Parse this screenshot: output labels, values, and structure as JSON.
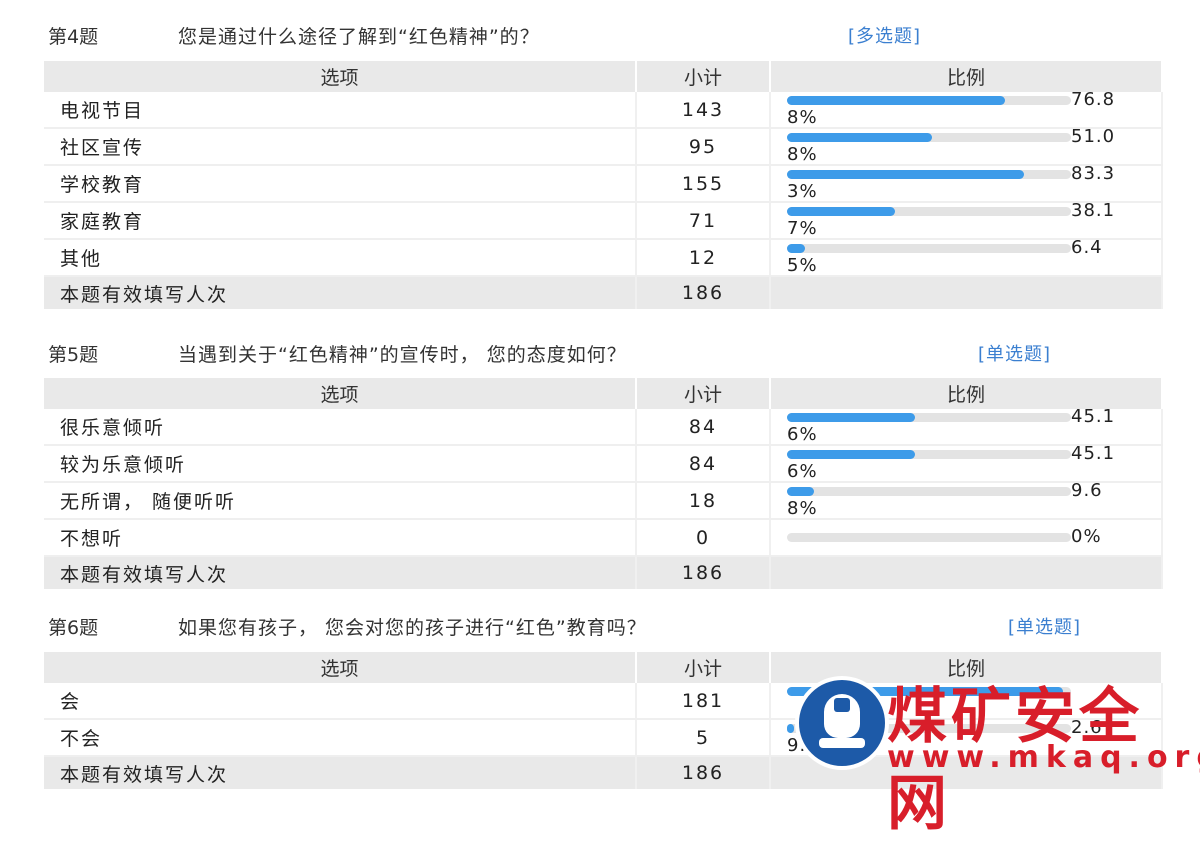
{
  "columns": {
    "option": "选项",
    "count": "小计",
    "ratio": "比例"
  },
  "total_label": "本题有效填写人次",
  "questions": [
    {
      "num": "第4题",
      "text": "您是通过什么途径了解到“红色精神”的？",
      "type": "[多选题]",
      "total": "186",
      "rows": [
        {
          "option": "电视节目",
          "count": "143",
          "pct_top": "76.8",
          "pct_bot": "8%",
          "fill": 0.768
        },
        {
          "option": "社区宣传",
          "count": "95",
          "pct_top": "51.0",
          "pct_bot": "8%",
          "fill": 0.51
        },
        {
          "option": "学校教育",
          "count": "155",
          "pct_top": "83.3",
          "pct_bot": "3%",
          "fill": 0.833
        },
        {
          "option": "家庭教育",
          "count": "71",
          "pct_top": "38.1",
          "pct_bot": "7%",
          "fill": 0.381
        },
        {
          "option": "其他",
          "count": "12",
          "pct_top": "6.4",
          "pct_bot": "5%",
          "fill": 0.064
        }
      ]
    },
    {
      "num": "第5题",
      "text": "当遇到关于“红色精神”的宣传时， 您的态度如何？",
      "type": "[单选题]",
      "total": "186",
      "rows": [
        {
          "option": "很乐意倾听",
          "count": "84",
          "pct_top": "45.1",
          "pct_bot": "6%",
          "fill": 0.451
        },
        {
          "option": "较为乐意倾听",
          "count": "84",
          "pct_top": "45.1",
          "pct_bot": "6%",
          "fill": 0.451
        },
        {
          "option": "无所谓， 随便听听",
          "count": "18",
          "pct_top": "9.6",
          "pct_bot": "8%",
          "fill": 0.096
        },
        {
          "option": "不想听",
          "count": "0",
          "pct_top": "0%",
          "pct_bot": "",
          "fill": 0
        }
      ]
    },
    {
      "num": "第6题",
      "text": "如果您有孩子， 您会对您的孩子进行“红色”教育吗？",
      "type": "[单选题]",
      "total": "186",
      "rows": [
        {
          "option": "会",
          "count": "181",
          "pct_top": "",
          "pct_bot": "",
          "fill": 0.973
        },
        {
          "option": "不会",
          "count": "5",
          "pct_top": "2.6",
          "pct_bot": "9.",
          "fill": 0.026
        }
      ]
    }
  ],
  "watermark": {
    "title": "煤矿安全网",
    "url": "www.mkaq.org"
  },
  "colors": {
    "bar_fill": "#3d9be9",
    "bar_track": "#e3e3e3",
    "header_bg": "#e9e9e9",
    "type_label": "#3b7fd0",
    "watermark": "#d81e2a"
  }
}
